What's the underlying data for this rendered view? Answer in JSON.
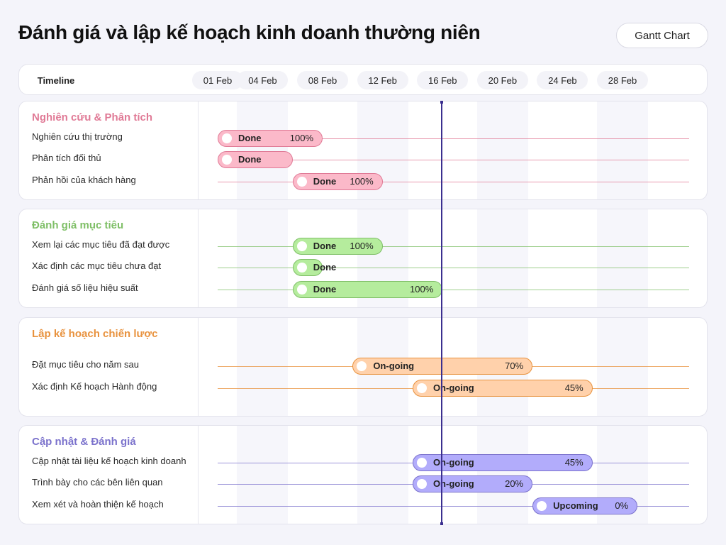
{
  "header": {
    "title": "Đánh giá và lập kế hoạch kinh doanh thường niên",
    "badge_label": "Gantt Chart"
  },
  "timeline": {
    "label": "Timeline",
    "dates": [
      "01 Feb",
      "04 Feb",
      "08 Feb",
      "12 Feb",
      "16 Feb",
      "20 Feb",
      "24 Feb",
      "28 Feb"
    ]
  },
  "chart_data": {
    "type": "gantt",
    "x_unit": "date",
    "current_date": "16 Feb",
    "sections": [
      {
        "name": "Nghiên cứu & Phân tích",
        "color": "#e07a96",
        "bar_fill": "#fbb9c9",
        "tasks": [
          {
            "name": "Nghiên cứu thị trường",
            "start": "01 Feb",
            "end": "08 Feb",
            "status": "Done",
            "progress": "100%"
          },
          {
            "name": "Phân tích đối thủ",
            "start": "01 Feb",
            "end": "06 Feb",
            "status": "Done",
            "progress": ""
          },
          {
            "name": "Phản hồi của khách hàng",
            "start": "06 Feb",
            "end": "12 Feb",
            "status": "Done",
            "progress": "100%"
          }
        ]
      },
      {
        "name": "Đánh giá mục tiêu",
        "color": "#7fbf67",
        "bar_fill": "#b5ec9d",
        "tasks": [
          {
            "name": "Xem lại các mục tiêu đã đạt được",
            "start": "06 Feb",
            "end": "12 Feb",
            "status": "Done",
            "progress": "100%"
          },
          {
            "name": "Xác định các mục tiêu chưa đạt",
            "start": "06 Feb",
            "end": "08 Feb",
            "status": "Done",
            "progress": ""
          },
          {
            "name": "Đánh giá số liệu hiệu suất",
            "start": "06 Feb",
            "end": "16 Feb",
            "status": "Done",
            "progress": "100%"
          }
        ]
      },
      {
        "name": "Lập kế hoạch chiến lược",
        "color": "#e8923e",
        "bar_fill": "#ffd1ab",
        "tasks": [
          {
            "name": "Đặt mục tiêu cho năm sau",
            "start": "10 Feb",
            "end": "22 Feb",
            "status": "On-going",
            "progress": "70%"
          },
          {
            "name": "Xác định Kế hoạch Hành động",
            "start": "14 Feb",
            "end": "26 Feb",
            "status": "On-going",
            "progress": "45%"
          }
        ]
      },
      {
        "name": "Cập nhật & Đánh giá",
        "color": "#7b72cc",
        "bar_fill": "#b2acfb",
        "tasks": [
          {
            "name": "Cập nhật tài liệu kế hoạch kinh doanh",
            "start": "14 Feb",
            "end": "26 Feb",
            "status": "On-going",
            "progress": "45%"
          },
          {
            "name": "Trình bày cho các bên liên quan",
            "start": "14 Feb",
            "end": "22 Feb",
            "status": "On-going",
            "progress": "20%"
          },
          {
            "name": "Xem xét và hoàn thiện kế hoạch",
            "start": "22 Feb",
            "end": "01 Mar",
            "status": "Upcoming",
            "progress": "0%"
          }
        ]
      }
    ]
  }
}
